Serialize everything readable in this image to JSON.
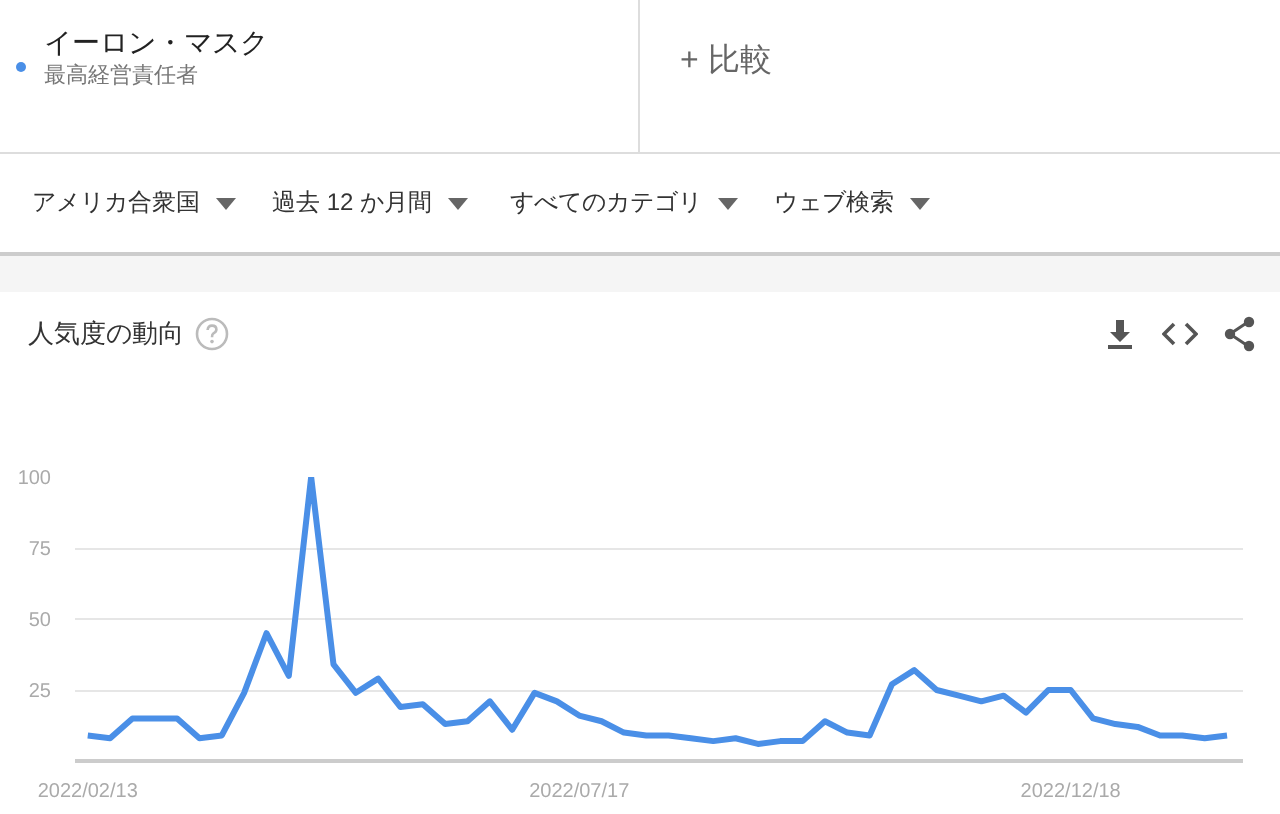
{
  "chart_data": {
    "type": "line",
    "title": "人気度の動向",
    "annotations": [
      "最高経営責任者",
      "+ 比較",
      "アメリカ合衆国",
      "過去 12 か月間",
      "すべてのカテゴリ",
      "ウェブ検索"
    ],
    "x": [
      "2022-02-13",
      "2022-02-20",
      "2022-02-27",
      "2022-03-06",
      "2022-03-13",
      "2022-03-20",
      "2022-03-27",
      "2022-04-03",
      "2022-04-10",
      "2022-04-17",
      "2022-04-24",
      "2022-05-01",
      "2022-05-08",
      "2022-05-15",
      "2022-05-22",
      "2022-05-29",
      "2022-06-05",
      "2022-06-12",
      "2022-06-19",
      "2022-06-26",
      "2022-07-03",
      "2022-07-10",
      "2022-07-17",
      "2022-07-24",
      "2022-07-31",
      "2022-08-07",
      "2022-08-14",
      "2022-08-21",
      "2022-08-28",
      "2022-09-04",
      "2022-09-11",
      "2022-09-18",
      "2022-09-25",
      "2022-10-02",
      "2022-10-09",
      "2022-10-16",
      "2022-10-23",
      "2022-10-30",
      "2022-11-06",
      "2022-11-13",
      "2022-11-20",
      "2022-11-27",
      "2022-12-04",
      "2022-12-11",
      "2022-12-18",
      "2022-12-25",
      "2023-01-01",
      "2023-01-08",
      "2023-01-15",
      "2023-01-22",
      "2023-01-29",
      "2023-02-05"
    ],
    "series": [
      {
        "name": "イーロン・マスク",
        "color": "#4a8fe7",
        "values": [
          9,
          8,
          15,
          15,
          15,
          8,
          9,
          24,
          45,
          30,
          100,
          34,
          24,
          29,
          19,
          20,
          13,
          14,
          21,
          11,
          24,
          21,
          16,
          14,
          10,
          9,
          9,
          8,
          7,
          8,
          6,
          7,
          7,
          14,
          10,
          9,
          27,
          32,
          25,
          23,
          21,
          23,
          17,
          25,
          25,
          15,
          13,
          12,
          9,
          9,
          8,
          9
        ]
      }
    ],
    "xlim": [
      "2022-02-09",
      "2023-02-10"
    ],
    "xticks": [
      {
        "value": "2022-02-13",
        "label": "2022/02/13"
      },
      {
        "value": "2022-07-17",
        "label": "2022/07/17"
      },
      {
        "value": "2022-12-18",
        "label": "2022/12/18"
      }
    ],
    "ylim": [
      0,
      100
    ],
    "yticks": [
      25,
      50,
      75,
      100
    ],
    "grid": "y"
  }
}
